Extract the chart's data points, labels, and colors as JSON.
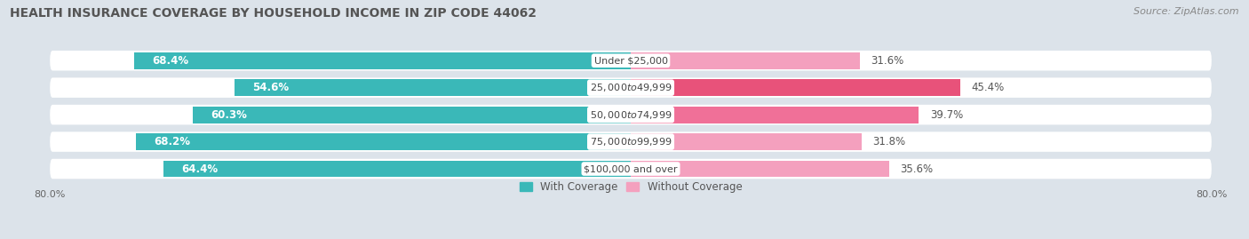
{
  "title": "HEALTH INSURANCE COVERAGE BY HOUSEHOLD INCOME IN ZIP CODE 44062",
  "source": "Source: ZipAtlas.com",
  "categories": [
    "Under $25,000",
    "$25,000 to $49,999",
    "$50,000 to $74,999",
    "$75,000 to $99,999",
    "$100,000 and over"
  ],
  "with_coverage": [
    68.4,
    54.6,
    60.3,
    68.2,
    64.4
  ],
  "without_coverage": [
    31.6,
    45.4,
    39.7,
    31.8,
    35.6
  ],
  "color_with": "#3ab8b8",
  "color_without_alt": [
    "#f4a0be",
    "#e8527a",
    "#f07098",
    "#f4a0be",
    "#f4a0be"
  ],
  "color_without": "#f4a0be",
  "color_without_2": "#e8527a",
  "xlim_left": -80.0,
  "xlim_right": 80.0,
  "bg_color": "#dce3ea",
  "bar_bg_color": "#e8ecf0",
  "bar_height": 0.62,
  "title_fontsize": 10,
  "source_fontsize": 8,
  "label_fontsize": 8.5,
  "category_fontsize": 8
}
